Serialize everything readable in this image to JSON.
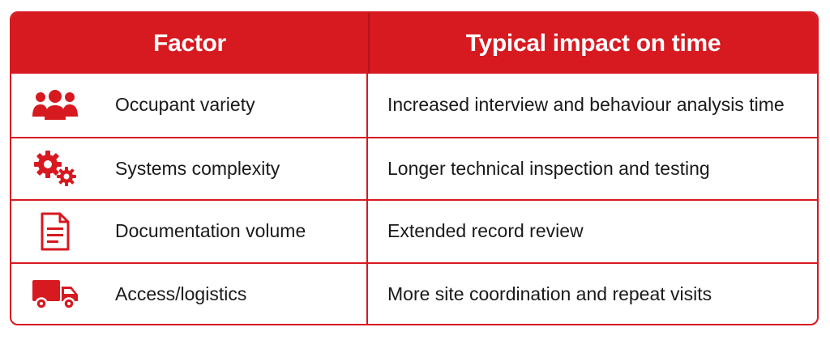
{
  "table": {
    "headers": {
      "factor": "Factor",
      "impact": "Typical impact on time"
    },
    "rows": [
      {
        "icon": "people-icon",
        "factor": "Occupant variety",
        "impact": "Increased interview and behaviour analysis time"
      },
      {
        "icon": "gears-icon",
        "factor": "Systems complexity",
        "impact": "Longer technical inspection and testing"
      },
      {
        "icon": "document-icon",
        "factor": "Documentation volume",
        "impact": "Extended record review"
      },
      {
        "icon": "truck-icon",
        "factor": "Access/logistics",
        "impact": "More site coordination and repeat visits"
      }
    ]
  },
  "colors": {
    "accent": "#d71920",
    "text": "#1a1a1a",
    "background": "#ffffff"
  }
}
